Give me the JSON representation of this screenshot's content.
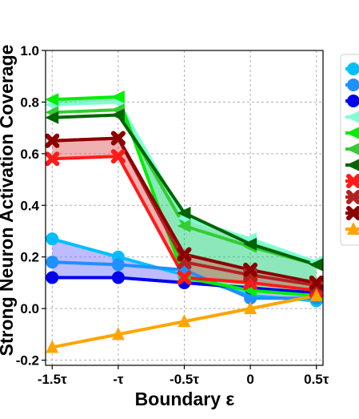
{
  "chart_data": {
    "type": "line",
    "xlabel": "Boundary ε",
    "ylabel": "Strong Neuron Activation Coverage",
    "x_tick_labels": [
      "-1.5τ",
      "-τ",
      "-0.5τ",
      "0",
      "0.5τ"
    ],
    "y_tick_labels": [
      "-0.2",
      "0.0",
      "0.2",
      "0.4",
      "0.6",
      "0.8",
      "1.0"
    ],
    "x": [
      -1.5,
      -1.0,
      -0.5,
      0,
      0.5
    ],
    "xlim": [
      -1.55,
      0.55
    ],
    "ylim": [
      -0.22,
      1.0
    ],
    "grid": true,
    "legend_position": "right (cropped)",
    "series": [
      {
        "color": "#00bfff",
        "marker": "circle",
        "values": [
          0.27,
          0.2,
          0.13,
          0.05,
          0.03
        ]
      },
      {
        "color": "#1e90ff",
        "marker": "circle",
        "values": [
          0.18,
          0.17,
          0.15,
          0.04,
          0.04
        ]
      },
      {
        "color": "#0000ee",
        "marker": "circle",
        "values": [
          0.12,
          0.12,
          0.1,
          0.08,
          0.06
        ]
      },
      {
        "color": "#7fffd4",
        "marker": "triangle-left",
        "values": [
          0.79,
          0.8,
          0.35,
          0.27,
          0.18
        ]
      },
      {
        "color": "#00ee00",
        "marker": "triangle-left",
        "values": [
          0.81,
          0.82,
          0.12,
          0.07,
          0.05
        ]
      },
      {
        "color": "#32cd32",
        "marker": "triangle-left",
        "values": [
          0.76,
          0.77,
          0.32,
          0.24,
          0.17
        ]
      },
      {
        "color": "#006400",
        "marker": "triangle-left",
        "values": [
          0.74,
          0.75,
          0.37,
          0.25,
          0.17
        ]
      },
      {
        "color": "#ff1a1a",
        "marker": "x",
        "values": [
          0.58,
          0.59,
          0.12,
          0.1,
          0.07
        ]
      },
      {
        "color": "#b22222",
        "marker": "x",
        "values": [
          0.65,
          0.66,
          0.18,
          0.13,
          0.09
        ]
      },
      {
        "color": "#8b0000",
        "marker": "x",
        "values": [
          0.65,
          0.66,
          0.21,
          0.15,
          0.1
        ]
      },
      {
        "color": "#ffa500",
        "marker": "triangle-up",
        "values": [
          -0.15,
          -0.1,
          -0.05,
          0.0,
          0.05
        ]
      }
    ],
    "bands": [
      {
        "color": "#6b6bff",
        "lower_series": 2,
        "upper_series": 0
      },
      {
        "color": "#00cc66",
        "lower_series": 4,
        "upper_series": 3
      },
      {
        "color": "#e05050",
        "lower_series": 7,
        "upper_series": 9
      }
    ]
  }
}
